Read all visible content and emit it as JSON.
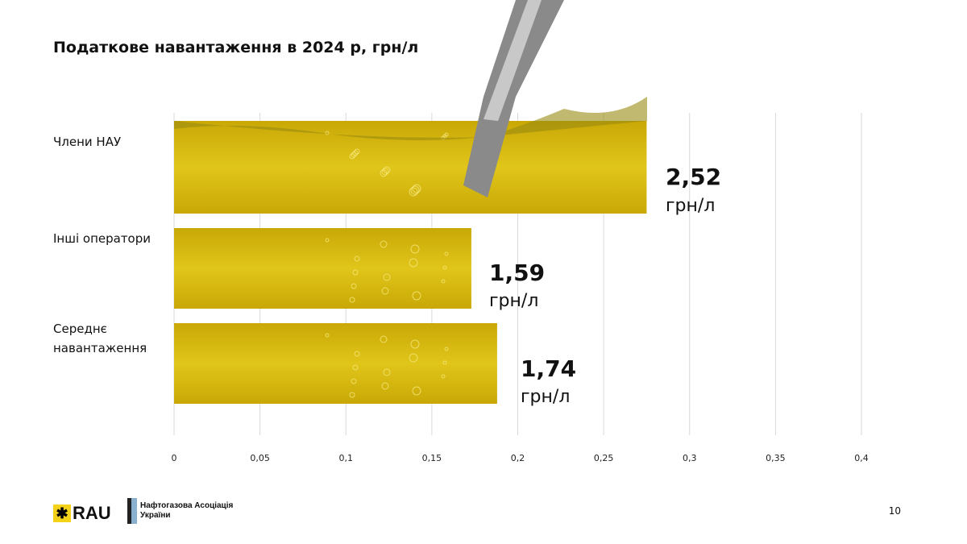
{
  "page_title": "Податкове навантаження в 2024 р, грн/л",
  "page_number": "10",
  "logos": {
    "rau": "RAU",
    "nau": "Нафтогазова Асоціація України"
  },
  "chart_data": {
    "type": "bar",
    "orientation": "horizontal",
    "title": "Податкове навантаження в 2024 р, грн/л",
    "categories": [
      "Члени НАУ",
      "Інші оператори",
      "Середнє навантаження"
    ],
    "values": [
      0.275,
      0.173,
      0.188
    ],
    "data_labels": [
      {
        "value": "2,52",
        "unit": "грн/л"
      },
      {
        "value": "1,59",
        "unit": "грн/л"
      },
      {
        "value": "1,74",
        "unit": "грн/л"
      }
    ],
    "xlim": [
      0,
      0.4
    ],
    "x_ticks": [
      "0",
      "0,05",
      "0,1",
      "0,15",
      "0,2",
      "0,25",
      "0,3",
      "0,35",
      "0,4"
    ],
    "grid": true,
    "bar_fill": "fuel image (yellow)",
    "colors": {
      "bar": "#e0c51a",
      "bar_dark": "#c9a806",
      "grid": "#d9d9d9"
    }
  }
}
